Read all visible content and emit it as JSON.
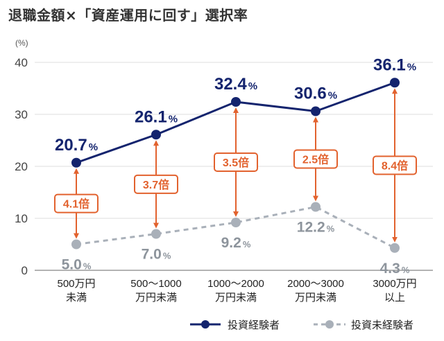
{
  "chart_data": {
    "type": "line",
    "title": "退職金額×「資産運用に回す」選択率",
    "unit_label": "(%)",
    "ylim": [
      0,
      40
    ],
    "yticks": [
      0,
      10,
      20,
      30,
      40
    ],
    "grid": true,
    "legend_position": "bottom-right",
    "categories": [
      [
        "500万円",
        "未満"
      ],
      [
        "500～1000",
        "万円未満"
      ],
      [
        "1000～2000",
        "万円未満"
      ],
      [
        "2000～3000",
        "万円未満"
      ],
      [
        "3000万円",
        "以上"
      ]
    ],
    "series": [
      {
        "name": "投資経験者",
        "values": [
          20.7,
          26.1,
          32.4,
          30.6,
          36.1
        ],
        "labels": [
          "20.7",
          "26.1",
          "32.4",
          "30.6",
          "36.1"
        ],
        "color": "#14246e",
        "style": "solid"
      },
      {
        "name": "投資未経験者",
        "values": [
          5.0,
          7.0,
          9.2,
          12.2,
          4.3
        ],
        "labels": [
          "5.0",
          "7.0",
          "9.2",
          "12.2",
          "4.3"
        ],
        "color": "#a9b0b9",
        "style": "dashed"
      }
    ],
    "ratio_annotations": [
      "4.1倍",
      "3.7倍",
      "3.5倍",
      "2.5倍",
      "8.4倍"
    ],
    "annotation_color": "#e2622e",
    "percent_suffix": "%"
  }
}
